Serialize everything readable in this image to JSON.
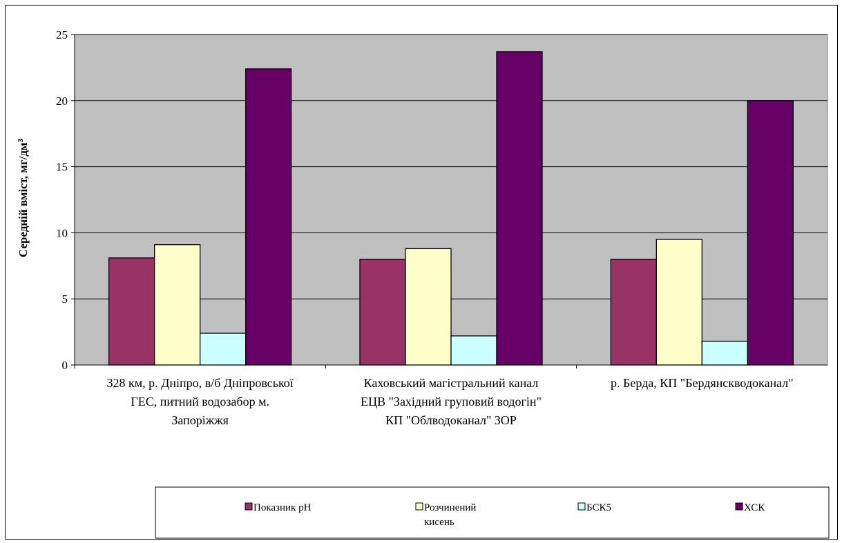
{
  "chart_data": {
    "type": "bar",
    "categories": [
      [
        "328  км, р. Дніпро, в/б Дніпровської",
        "ГЕС, питний водозабор м.",
        "Запоріжжя"
      ],
      [
        "Каховський магістральний канал",
        "ЕЦВ  \"Західний груповий водогін\"",
        "КП \"Облводоканал\" ЗОР"
      ],
      [
        "р. Берда, КП \"Бердянскводоканал\""
      ]
    ],
    "series": [
      {
        "name": "Показник рН",
        "values": [
          8.1,
          8.0,
          8.0
        ],
        "color": "#993366"
      },
      {
        "name": "Розчинений кисень",
        "legend_lines": [
          "Розчинений",
          "кисень"
        ],
        "values": [
          9.1,
          8.8,
          9.5
        ],
        "color": "#FFFFCC"
      },
      {
        "name": "БСК5",
        "values": [
          2.4,
          2.2,
          1.8
        ],
        "color": "#CCFFFF"
      },
      {
        "name": "ХСК",
        "values": [
          22.4,
          23.7,
          20.0
        ],
        "color": "#660066"
      }
    ],
    "ylabel": "Середній вміст, мг/дм",
    "ylabel_sup": "3",
    "ylim": [
      0,
      25
    ],
    "yticks": [
      "0",
      "5",
      "10",
      "15",
      "20",
      "25"
    ],
    "plot_background": "#C0C0C0",
    "grid": true,
    "legend_position": "bottom"
  }
}
